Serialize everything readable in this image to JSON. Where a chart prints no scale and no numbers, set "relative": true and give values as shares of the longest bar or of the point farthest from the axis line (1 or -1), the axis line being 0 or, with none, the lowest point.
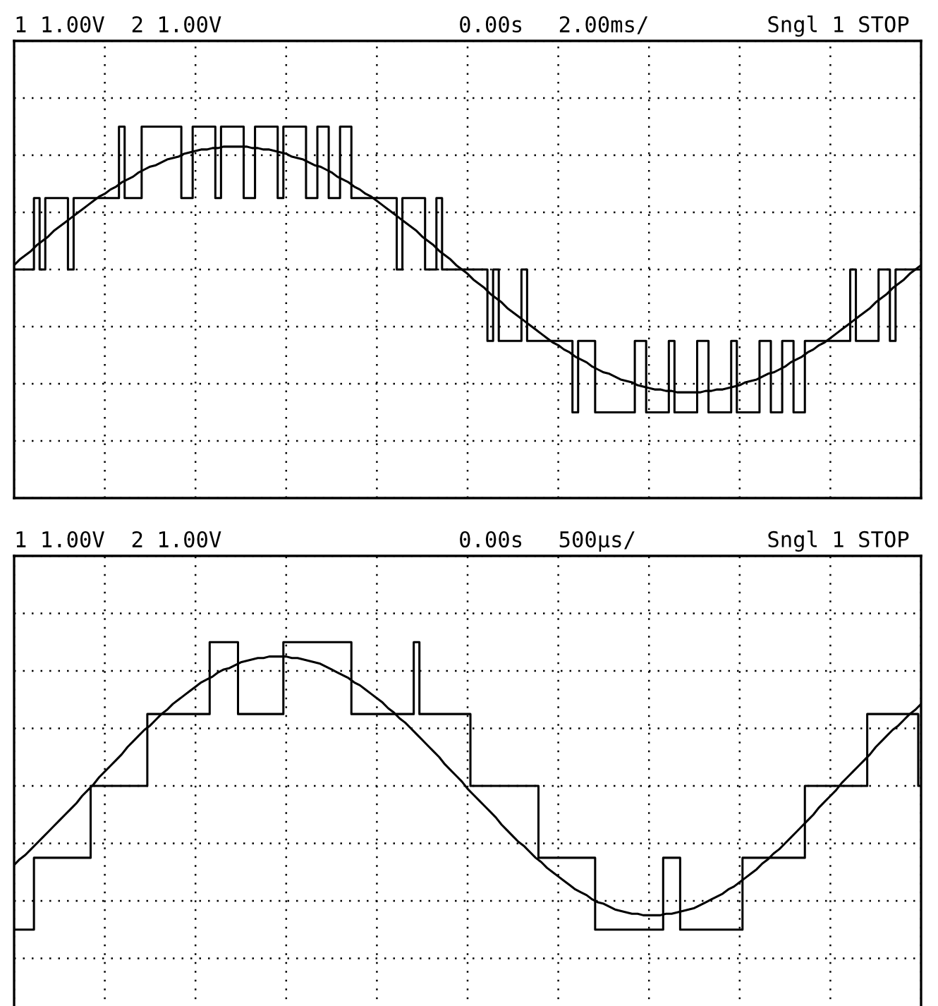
{
  "chart_data": [
    {
      "type": "line",
      "relative": true,
      "grid": true,
      "tick_labels": false,
      "annotations": [
        "1 1.00V  2 1.00V",
        "0.00s",
        "2.00ms/",
        "Sngl 1 STOP"
      ],
      "categories": [
        null,
        null,
        null,
        null,
        null,
        null,
        null,
        null,
        null,
        null,
        null,
        null,
        null,
        null,
        null,
        null,
        null,
        null,
        null,
        null,
        null,
        null,
        null,
        null,
        null,
        null,
        null,
        null,
        null,
        null,
        null,
        null,
        null,
        null,
        null,
        null,
        null,
        null,
        null,
        null,
        null,
        null,
        null,
        null,
        null,
        null,
        null,
        null,
        null,
        null,
        null,
        null,
        null,
        null,
        null,
        null,
        null,
        null,
        null,
        null,
        null,
        null,
        null,
        null,
        null,
        null,
        null,
        null,
        null,
        null,
        null,
        null,
        null,
        null,
        null,
        null,
        null,
        null,
        null,
        null,
        null,
        null,
        null,
        null,
        null,
        null,
        null,
        null,
        null,
        null,
        null,
        null,
        null,
        null,
        null,
        null,
        null,
        null,
        null,
        null,
        null,
        null,
        null,
        null,
        null,
        null,
        null,
        null,
        null,
        null,
        null,
        null,
        null,
        null,
        null,
        null,
        null,
        null,
        null,
        null,
        null,
        null,
        null,
        null,
        null,
        null,
        null,
        null,
        null,
        null,
        null,
        null,
        null,
        null,
        null,
        null,
        null,
        null,
        null,
        null,
        null,
        null,
        null,
        null,
        null,
        null,
        null,
        null,
        null,
        null,
        null,
        null,
        null,
        null,
        null,
        null,
        null,
        null,
        null,
        null,
        null
      ],
      "series": [
        {
          "type": "step",
          "color": "#000000",
          "values": [
            0,
            0,
            0,
            0,
            0.5,
            0,
            0.5,
            0.5,
            0.5,
            0.5,
            0,
            0.5,
            0.5,
            0.5,
            0.5,
            0.5,
            0.5,
            0.5,
            0.5,
            1,
            0.5,
            0.5,
            0.5,
            1,
            1,
            1,
            1,
            1,
            1,
            1,
            0.5,
            0.5,
            1,
            1,
            1,
            1,
            0.5,
            1,
            1,
            1,
            1,
            0.5,
            0.5,
            1,
            1,
            1,
            1,
            0.5,
            1,
            1,
            1,
            1,
            0.5,
            0.5,
            1,
            1,
            0.5,
            0.5,
            1,
            1,
            0.5,
            0.5,
            0.5,
            0.5,
            0.5,
            0.5,
            0.5,
            0.5,
            0,
            0.5,
            0.5,
            0.5,
            0.5,
            0,
            0,
            0.5,
            0,
            0,
            0,
            0,
            0,
            0,
            0,
            0,
            -0.5,
            0,
            -0.5,
            -0.5,
            -0.5,
            -0.5,
            0,
            -0.5,
            -0.5,
            -0.5,
            -0.5,
            -0.5,
            -0.5,
            -0.5,
            -0.5,
            -1,
            -0.5,
            -0.5,
            -0.5,
            -1,
            -1,
            -1,
            -1,
            -1,
            -1,
            -1,
            -0.5,
            -0.5,
            -1,
            -1,
            -1,
            -1,
            -0.5,
            -1,
            -1,
            -1,
            -1,
            -0.5,
            -0.5,
            -1,
            -1,
            -1,
            -1,
            -0.5,
            -1,
            -1,
            -1,
            -1,
            -0.5,
            -0.5,
            -1,
            -1,
            -0.5,
            -0.5,
            -1,
            -1,
            -0.5,
            -0.5,
            -0.5,
            -0.5,
            -0.5,
            -0.5,
            -0.5,
            -0.5,
            0,
            -0.5,
            -0.5,
            -0.5,
            -0.5,
            0,
            0,
            -0.5,
            0,
            0,
            0,
            0,
            0
          ]
        },
        {
          "color": "#000000",
          "values": [
            0.03,
            0.07,
            0.1,
            0.13,
            0.17,
            0.2,
            0.23,
            0.27,
            0.3,
            0.33,
            0.36,
            0.39,
            0.42,
            0.45,
            0.48,
            0.51,
            0.53,
            0.56,
            0.58,
            0.61,
            0.63,
            0.65,
            0.68,
            0.7,
            0.72,
            0.73,
            0.75,
            0.77,
            0.78,
            0.79,
            0.81,
            0.82,
            0.83,
            0.84,
            0.84,
            0.85,
            0.85,
            0.86,
            0.86,
            0.86,
            0.86,
            0.86,
            0.85,
            0.85,
            0.84,
            0.84,
            0.83,
            0.82,
            0.81,
            0.79,
            0.78,
            0.77,
            0.75,
            0.73,
            0.72,
            0.7,
            0.68,
            0.65,
            0.63,
            0.61,
            0.58,
            0.56,
            0.53,
            0.51,
            0.48,
            0.45,
            0.42,
            0.39,
            0.36,
            0.33,
            0.3,
            0.27,
            0.23,
            0.2,
            0.17,
            0.13,
            0.1,
            0.07,
            0.03,
            0,
            -0.03,
            -0.07,
            -0.1,
            -0.13,
            -0.17,
            -0.2,
            -0.23,
            -0.27,
            -0.3,
            -0.33,
            -0.36,
            -0.39,
            -0.42,
            -0.45,
            -0.48,
            -0.51,
            -0.53,
            -0.56,
            -0.58,
            -0.61,
            -0.63,
            -0.65,
            -0.68,
            -0.7,
            -0.72,
            -0.73,
            -0.75,
            -0.77,
            -0.78,
            -0.79,
            -0.81,
            -0.82,
            -0.83,
            -0.84,
            -0.84,
            -0.85,
            -0.85,
            -0.86,
            -0.86,
            -0.86,
            -0.86,
            -0.86,
            -0.85,
            -0.85,
            -0.84,
            -0.84,
            -0.83,
            -0.82,
            -0.81,
            -0.79,
            -0.78,
            -0.77,
            -0.75,
            -0.73,
            -0.72,
            -0.7,
            -0.68,
            -0.65,
            -0.63,
            -0.61,
            -0.58,
            -0.56,
            -0.53,
            -0.51,
            -0.48,
            -0.45,
            -0.42,
            -0.39,
            -0.36,
            -0.33,
            -0.3,
            -0.27,
            -0.23,
            -0.2,
            -0.17,
            -0.13,
            -0.1,
            -0.07,
            -0.03,
            0,
            0.03
          ]
        }
      ]
    },
    {
      "type": "line",
      "relative": true,
      "grid": true,
      "tick_labels": false,
      "annotations": [
        "1 1.00V  2 1.00V",
        "0.00s",
        "500µs/",
        "Sngl 1 STOP"
      ],
      "categories": [
        null,
        null,
        null,
        null,
        null,
        null,
        null,
        null,
        null,
        null,
        null,
        null,
        null,
        null,
        null,
        null,
        null,
        null,
        null,
        null,
        null,
        null,
        null,
        null,
        null,
        null,
        null,
        null,
        null,
        null,
        null,
        null,
        null,
        null,
        null,
        null,
        null,
        null,
        null,
        null,
        null,
        null,
        null,
        null,
        null,
        null,
        null,
        null,
        null,
        null,
        null,
        null,
        null,
        null,
        null,
        null,
        null,
        null,
        null,
        null,
        null,
        null,
        null,
        null,
        null,
        null,
        null,
        null,
        null,
        null,
        null,
        null,
        null,
        null,
        null,
        null,
        null,
        null,
        null,
        null,
        null,
        null,
        null,
        null,
        null,
        null,
        null,
        null,
        null,
        null,
        null,
        null,
        null,
        null,
        null,
        null,
        null,
        null,
        null,
        null,
        null,
        null,
        null,
        null,
        null,
        null,
        null,
        null,
        null,
        null,
        null,
        null,
        null,
        null,
        null,
        null,
        null,
        null,
        null,
        null,
        null,
        null,
        null,
        null,
        null,
        null,
        null,
        null,
        null,
        null,
        null,
        null,
        null,
        null,
        null,
        null,
        null,
        null,
        null,
        null,
        null,
        null,
        null,
        null,
        null,
        null,
        null,
        null,
        null,
        null,
        null,
        null,
        null,
        null,
        null,
        null,
        null,
        null,
        null,
        null,
        null
      ],
      "series": [
        {
          "type": "step",
          "color": "#000000",
          "values": [
            -1,
            -1,
            -1,
            -1,
            -0.5,
            -0.5,
            -0.5,
            -0.5,
            -0.5,
            -0.5,
            -0.5,
            -0.5,
            -0.5,
            -0.5,
            0,
            0,
            0,
            0,
            0,
            0,
            0,
            0,
            0,
            0,
            0.5,
            0.5,
            0.5,
            0.5,
            0.5,
            0.5,
            0.5,
            0.5,
            0.5,
            0.5,
            0.5,
            1,
            1,
            1,
            1,
            1,
            0.5,
            0.5,
            0.5,
            0.5,
            0.5,
            0.5,
            0.5,
            0.5,
            1,
            1,
            1,
            1,
            1,
            1,
            1,
            1,
            1,
            1,
            1,
            1,
            0.5,
            0.5,
            0.5,
            0.5,
            0.5,
            0.5,
            0.5,
            0.5,
            0.5,
            0.5,
            0.5,
            1,
            0.5,
            0.5,
            0.5,
            0.5,
            0.5,
            0.5,
            0.5,
            0.5,
            0.5,
            0,
            0,
            0,
            0,
            0,
            0,
            0,
            0,
            0,
            0,
            0,
            0,
            -0.5,
            -0.5,
            -0.5,
            -0.5,
            -0.5,
            -0.5,
            -0.5,
            -0.5,
            -0.5,
            -0.5,
            -1,
            -1,
            -1,
            -1,
            -1,
            -1,
            -1,
            -1,
            -1,
            -1,
            -1,
            -1,
            -0.5,
            -0.5,
            -0.5,
            -1,
            -1,
            -1,
            -1,
            -1,
            -1,
            -1,
            -1,
            -1,
            -1,
            -1,
            -0.5,
            -0.5,
            -0.5,
            -0.5,
            -0.5,
            -0.5,
            -0.5,
            -0.5,
            -0.5,
            -0.5,
            -0.5,
            0,
            0,
            0,
            0,
            0,
            0,
            0,
            0,
            0,
            0,
            0,
            0.5,
            0.5,
            0.5,
            0.5,
            0.5,
            0.5,
            0.5,
            0.5,
            0.5,
            0
          ]
        },
        {
          "color": "#000000",
          "values": [
            -0.55,
            -0.51,
            -0.48,
            -0.44,
            -0.4,
            -0.36,
            -0.32,
            -0.28,
            -0.24,
            -0.2,
            -0.16,
            -0.12,
            -0.07,
            -0.03,
            0.01,
            0.06,
            0.1,
            0.14,
            0.18,
            0.22,
            0.27,
            0.31,
            0.35,
            0.39,
            0.42,
            0.46,
            0.5,
            0.53,
            0.57,
            0.6,
            0.63,
            0.66,
            0.69,
            0.72,
            0.74,
            0.76,
            0.79,
            0.81,
            0.82,
            0.84,
            0.86,
            0.87,
            0.88,
            0.89,
            0.89,
            0.9,
            0.9,
            0.9,
            0.9,
            0.89,
            0.89,
            0.88,
            0.87,
            0.86,
            0.85,
            0.83,
            0.81,
            0.79,
            0.77,
            0.75,
            0.72,
            0.7,
            0.67,
            0.64,
            0.61,
            0.58,
            0.54,
            0.51,
            0.47,
            0.44,
            0.4,
            0.36,
            0.32,
            0.28,
            0.24,
            0.2,
            0.15,
            0.11,
            0.07,
            0.03,
            -0.02,
            -0.06,
            -0.1,
            -0.14,
            -0.18,
            -0.22,
            -0.27,
            -0.31,
            -0.35,
            -0.39,
            -0.42,
            -0.46,
            -0.5,
            -0.53,
            -0.57,
            -0.6,
            -0.63,
            -0.66,
            -0.69,
            -0.72,
            -0.74,
            -0.76,
            -0.79,
            -0.81,
            -0.82,
            -0.84,
            -0.86,
            -0.87,
            -0.88,
            -0.89,
            -0.89,
            -0.9,
            -0.9,
            -0.9,
            -0.9,
            -0.89,
            -0.89,
            -0.88,
            -0.87,
            -0.86,
            -0.85,
            -0.83,
            -0.81,
            -0.79,
            -0.77,
            -0.75,
            -0.72,
            -0.7,
            -0.67,
            -0.64,
            -0.61,
            -0.58,
            -0.54,
            -0.51,
            -0.47,
            -0.44,
            -0.4,
            -0.36,
            -0.32,
            -0.28,
            -0.24,
            -0.2,
            -0.15,
            -0.11,
            -0.07,
            -0.03,
            0.02,
            0.06,
            0.1,
            0.14,
            0.18,
            0.22,
            0.27,
            0.31,
            0.35,
            0.39,
            0.42,
            0.46,
            0.5,
            0.53,
            0.57
          ]
        }
      ]
    }
  ]
}
